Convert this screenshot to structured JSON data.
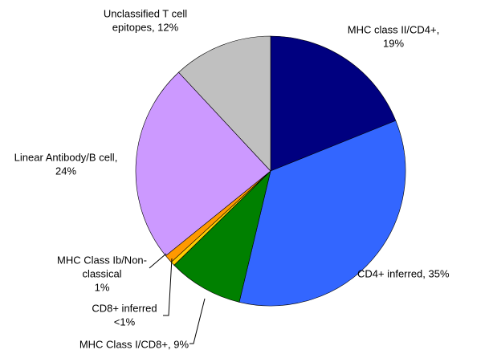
{
  "chart_data": {
    "type": "pie",
    "labels": [
      [
        "MHC class II/CD4+,",
        "19%"
      ],
      [
        "CD4+ inferred, 35%"
      ],
      [
        "MHC Class I/CD8+, 9%"
      ],
      [
        "CD8+ inferred",
        "<1%"
      ],
      [
        "MHC Class Ib/Non-",
        "classical",
        "1%"
      ],
      [
        "Linear Antibody/B cell,",
        "24%"
      ],
      [
        "Unclassified T cell",
        "epitopes, 12%"
      ]
    ],
    "values": [
      19,
      35,
      9,
      0.5,
      1,
      24,
      12
    ],
    "colors": [
      "#000080",
      "#3366ff",
      "#008000",
      "#ffcc00",
      "#ff9900",
      "#cc99ff",
      "#c0c0c0"
    ]
  }
}
